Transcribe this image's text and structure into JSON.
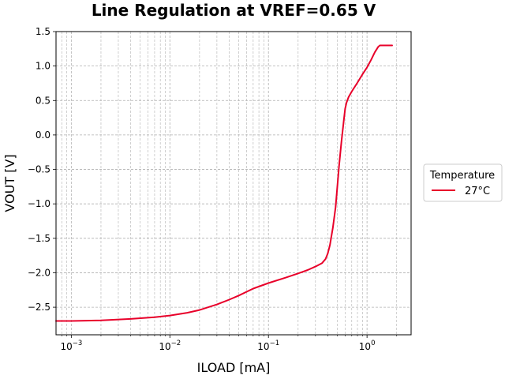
{
  "chart_data": {
    "type": "line",
    "title": "Line Regulation at VREF=0.65 V",
    "xlabel": "ILOAD [mA]",
    "ylabel": "VOUT [V]",
    "xscale": "log",
    "xlim": [
      0.0007,
      2.8
    ],
    "ylim": [
      -2.9,
      1.5
    ],
    "grid": true,
    "x_ticks": [
      {
        "base": "10",
        "exp": "−3",
        "value": 0.001
      },
      {
        "base": "10",
        "exp": "−2",
        "value": 0.01
      },
      {
        "base": "10",
        "exp": "−1",
        "value": 0.1
      },
      {
        "base": "10",
        "exp": "0",
        "value": 1
      }
    ],
    "y_ticks": [
      {
        "label": "1.5",
        "value": 1.5
      },
      {
        "label": "1.0",
        "value": 1.0
      },
      {
        "label": "0.5",
        "value": 0.5
      },
      {
        "label": "0.0",
        "value": 0.0
      },
      {
        "label": "−0.5",
        "value": -0.5
      },
      {
        "label": "−1.0",
        "value": -1.0
      },
      {
        "label": "−1.5",
        "value": -1.5
      },
      {
        "label": "−2.0",
        "value": -2.0
      },
      {
        "label": "−2.5",
        "value": -2.5
      }
    ],
    "legend": {
      "title": "Temperature",
      "placement": "outside-right"
    },
    "series": [
      {
        "name": "27°C",
        "color": "#e8002a",
        "x": [
          0.0007,
          0.001,
          0.002,
          0.004,
          0.007,
          0.01,
          0.015,
          0.02,
          0.03,
          0.04,
          0.05,
          0.07,
          0.1,
          0.15,
          0.2,
          0.25,
          0.3,
          0.35,
          0.38,
          0.4,
          0.42,
          0.45,
          0.48,
          0.5,
          0.52,
          0.55,
          0.58,
          0.6,
          0.62,
          0.65,
          0.7,
          0.8,
          0.9,
          1.0,
          1.1,
          1.2,
          1.3,
          1.35,
          1.5,
          1.7,
          1.8
        ],
        "y": [
          -2.7,
          -2.7,
          -2.69,
          -2.67,
          -2.645,
          -2.62,
          -2.58,
          -2.54,
          -2.46,
          -2.39,
          -2.33,
          -2.23,
          -2.15,
          -2.07,
          -2.01,
          -1.96,
          -1.91,
          -1.86,
          -1.8,
          -1.72,
          -1.6,
          -1.35,
          -1.05,
          -0.75,
          -0.45,
          -0.1,
          0.2,
          0.38,
          0.47,
          0.55,
          0.63,
          0.76,
          0.88,
          0.98,
          1.09,
          1.2,
          1.28,
          1.3,
          1.3,
          1.3,
          1.3
        ]
      }
    ]
  }
}
